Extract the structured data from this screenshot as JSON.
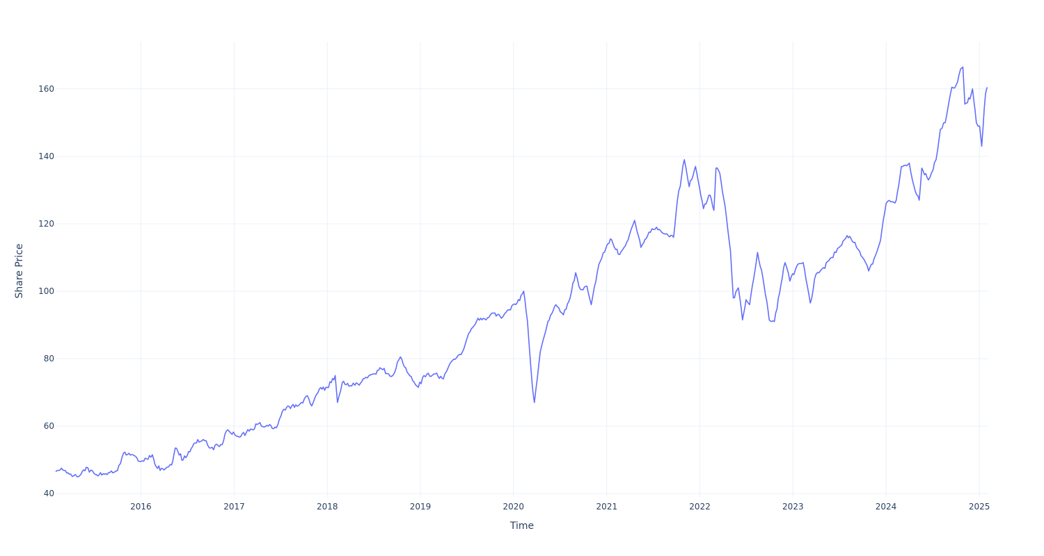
{
  "chart_data": {
    "type": "line",
    "xlabel": "Time",
    "ylabel": "Share Price",
    "xlim": [
      "2015-02-01",
      "2025-02-05"
    ],
    "ylim": [
      39,
      174
    ],
    "x_ticks": [
      "2016",
      "2017",
      "2018",
      "2019",
      "2020",
      "2021",
      "2022",
      "2023",
      "2024",
      "2025"
    ],
    "y_ticks": [
      40,
      60,
      80,
      100,
      120,
      140,
      160
    ],
    "grid": true,
    "legend": "none",
    "line_color": "#636efa",
    "series": [
      {
        "points": [
          [
            "2015-02-01",
            46.5
          ],
          [
            "2015-03-01",
            47.0
          ],
          [
            "2015-04-01",
            45.8
          ],
          [
            "2015-05-01",
            45.0
          ],
          [
            "2015-06-01",
            47.8
          ],
          [
            "2015-07-01",
            46.0
          ],
          [
            "2015-08-01",
            45.5
          ],
          [
            "2015-09-01",
            46.2
          ],
          [
            "2015-10-01",
            46.8
          ],
          [
            "2015-10-25",
            52.0
          ],
          [
            "2015-12-01",
            51.5
          ],
          [
            "2016-01-01",
            49.5
          ],
          [
            "2016-02-15",
            51.5
          ],
          [
            "2016-03-01",
            48.0
          ],
          [
            "2016-04-01",
            47.0
          ],
          [
            "2016-05-01",
            48.5
          ],
          [
            "2016-05-15",
            53.5
          ],
          [
            "2016-06-15",
            50.0
          ],
          [
            "2016-08-01",
            55.0
          ],
          [
            "2016-09-01",
            56.0
          ],
          [
            "2016-10-01",
            53.5
          ],
          [
            "2016-11-15",
            54.5
          ],
          [
            "2016-12-01",
            58.5
          ],
          [
            "2017-01-15",
            57.0
          ],
          [
            "2017-03-01",
            58.5
          ],
          [
            "2017-04-01",
            60.5
          ],
          [
            "2017-05-15",
            60.0
          ],
          [
            "2017-06-15",
            59.5
          ],
          [
            "2017-07-15",
            65.0
          ],
          [
            "2017-08-15",
            66.0
          ],
          [
            "2017-09-15",
            66.5
          ],
          [
            "2017-10-15",
            69.0
          ],
          [
            "2017-11-01",
            66.0
          ],
          [
            "2017-12-01",
            71.0
          ],
          [
            "2018-01-01",
            71.5
          ],
          [
            "2018-02-01",
            75.0
          ],
          [
            "2018-02-10",
            67.0
          ],
          [
            "2018-03-01",
            73.0
          ],
          [
            "2018-04-01",
            72.0
          ],
          [
            "2018-05-01",
            72.5
          ],
          [
            "2018-06-01",
            74.5
          ],
          [
            "2018-07-01",
            75.5
          ],
          [
            "2018-08-01",
            77.0
          ],
          [
            "2018-09-15",
            75.0
          ],
          [
            "2018-10-15",
            80.5
          ],
          [
            "2018-11-15",
            75.5
          ],
          [
            "2018-12-24",
            71.5
          ],
          [
            "2019-01-15",
            75.0
          ],
          [
            "2019-03-01",
            75.5
          ],
          [
            "2019-04-01",
            74.0
          ],
          [
            "2019-05-01",
            79.0
          ],
          [
            "2019-06-15",
            82.0
          ],
          [
            "2019-07-15",
            88.0
          ],
          [
            "2019-08-15",
            92.0
          ],
          [
            "2019-09-15",
            91.5
          ],
          [
            "2019-10-15",
            93.5
          ],
          [
            "2019-11-15",
            92.0
          ],
          [
            "2019-12-15",
            94.5
          ],
          [
            "2020-01-15",
            96.5
          ],
          [
            "2020-02-10",
            100.0
          ],
          [
            "2020-02-25",
            91.0
          ],
          [
            "2020-03-15",
            72.0
          ],
          [
            "2020-03-23",
            67.0
          ],
          [
            "2020-04-15",
            82.0
          ],
          [
            "2020-05-15",
            91.0
          ],
          [
            "2020-06-15",
            96.0
          ],
          [
            "2020-07-15",
            93.0
          ],
          [
            "2020-08-10",
            98.0
          ],
          [
            "2020-09-01",
            105.5
          ],
          [
            "2020-09-20",
            100.5
          ],
          [
            "2020-10-15",
            101.5
          ],
          [
            "2020-11-01",
            96.0
          ],
          [
            "2020-12-01",
            108.0
          ],
          [
            "2021-01-15",
            115.5
          ],
          [
            "2021-02-15",
            111.0
          ],
          [
            "2021-03-15",
            113.5
          ],
          [
            "2021-04-20",
            121.0
          ],
          [
            "2021-05-15",
            113.0
          ],
          [
            "2021-06-15",
            117.5
          ],
          [
            "2021-07-15",
            119.0
          ],
          [
            "2021-08-15",
            117.0
          ],
          [
            "2021-09-20",
            116.0
          ],
          [
            "2021-10-05",
            127.0
          ],
          [
            "2021-11-01",
            139.0
          ],
          [
            "2021-11-20",
            131.0
          ],
          [
            "2021-12-15",
            137.0
          ],
          [
            "2022-01-15",
            124.5
          ],
          [
            "2022-02-10",
            128.5
          ],
          [
            "2022-02-25",
            124.0
          ],
          [
            "2022-03-05",
            136.5
          ],
          [
            "2022-03-20",
            135.0
          ],
          [
            "2022-04-15",
            122.0
          ],
          [
            "2022-05-01",
            112.0
          ],
          [
            "2022-05-12",
            98.0
          ],
          [
            "2022-06-01",
            101.0
          ],
          [
            "2022-06-17",
            91.5
          ],
          [
            "2022-07-01",
            97.5
          ],
          [
            "2022-07-15",
            96.0
          ],
          [
            "2022-08-15",
            111.5
          ],
          [
            "2022-09-05",
            104.0
          ],
          [
            "2022-09-30",
            91.5
          ],
          [
            "2022-10-20",
            91.0
          ],
          [
            "2022-11-15",
            102.0
          ],
          [
            "2022-12-01",
            108.5
          ],
          [
            "2022-12-20",
            103.0
          ],
          [
            "2023-01-20",
            108.0
          ],
          [
            "2023-02-10",
            108.5
          ],
          [
            "2023-03-10",
            96.5
          ],
          [
            "2023-04-01",
            105.0
          ],
          [
            "2023-05-01",
            107.0
          ],
          [
            "2023-06-01",
            110.0
          ],
          [
            "2023-07-01",
            113.0
          ],
          [
            "2023-08-01",
            116.5
          ],
          [
            "2023-09-01",
            114.5
          ],
          [
            "2023-10-01",
            110.0
          ],
          [
            "2023-10-25",
            106.0
          ],
          [
            "2023-11-20",
            110.5
          ],
          [
            "2023-12-10",
            115.0
          ],
          [
            "2024-01-01",
            126.0
          ],
          [
            "2024-01-20",
            126.5
          ],
          [
            "2024-02-10",
            127.0
          ],
          [
            "2024-03-01",
            137.0
          ],
          [
            "2024-04-01",
            138.0
          ],
          [
            "2024-04-20",
            131.0
          ],
          [
            "2024-05-10",
            127.0
          ],
          [
            "2024-05-20",
            136.5
          ],
          [
            "2024-06-15",
            133.0
          ],
          [
            "2024-07-15",
            139.0
          ],
          [
            "2024-08-01",
            148.0
          ],
          [
            "2024-08-20",
            150.0
          ],
          [
            "2024-09-15",
            160.5
          ],
          [
            "2024-10-01",
            161.0
          ],
          [
            "2024-10-20",
            166.0
          ],
          [
            "2024-10-28",
            166.5
          ],
          [
            "2024-11-05",
            155.5
          ],
          [
            "2024-11-25",
            157.0
          ],
          [
            "2024-12-05",
            160.0
          ],
          [
            "2024-12-20",
            150.0
          ],
          [
            "2025-01-02",
            149.0
          ],
          [
            "2025-01-10",
            143.0
          ],
          [
            "2025-01-25",
            158.5
          ],
          [
            "2025-02-01",
            160.5
          ]
        ]
      }
    ]
  }
}
